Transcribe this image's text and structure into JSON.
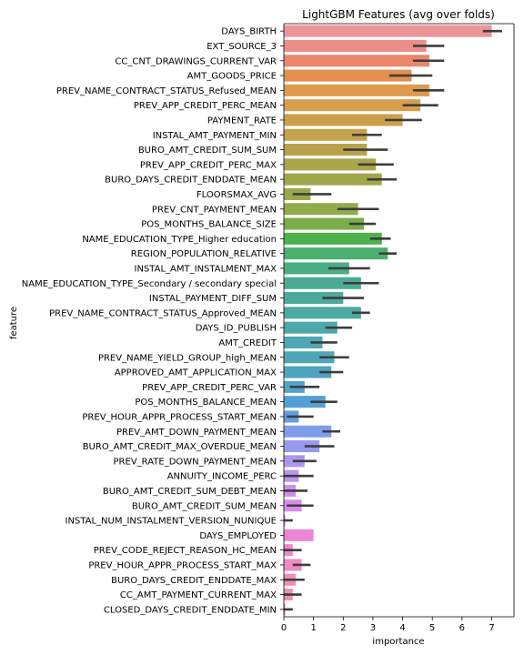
{
  "chart_data": {
    "type": "bar",
    "orientation": "horizontal",
    "title": "LightGBM Features (avg over folds)",
    "xlabel": "importance",
    "ylabel": "feature",
    "xlim": [
      0,
      7.75
    ],
    "xticks": [
      0,
      1,
      2,
      3,
      4,
      5,
      6,
      7
    ],
    "grid": false,
    "legend": "none",
    "bars": [
      {
        "feature": "DAYS_BIRTH",
        "value": 7.0,
        "err_low": 6.7,
        "err_high": 7.35,
        "color": "#ec9599"
      },
      {
        "feature": "EXT_SOURCE_3",
        "value": 4.8,
        "err_low": 4.35,
        "err_high": 5.4,
        "color": "#eb8e8a"
      },
      {
        "feature": "CC_CNT_DRAWINGS_CURRENT_VAR",
        "value": 4.9,
        "err_low": 4.35,
        "err_high": 5.4,
        "color": "#ea866c"
      },
      {
        "feature": "AMT_GOODS_PRICE",
        "value": 4.3,
        "err_low": 3.55,
        "err_high": 5.0,
        "color": "#e48e4f"
      },
      {
        "feature": "PREV_NAME_CONTRACT_STATUS_Refused_MEAN",
        "value": 4.9,
        "err_low": 4.35,
        "err_high": 5.4,
        "color": "#df9a4e"
      },
      {
        "feature": "PREV_APP_CREDIT_PERC_MEAN",
        "value": 4.6,
        "err_low": 4.0,
        "err_high": 5.2,
        "color": "#d79f4c"
      },
      {
        "feature": "PAYMENT_RATE",
        "value": 4.0,
        "err_low": 3.4,
        "err_high": 4.65,
        "color": "#ce9f4b"
      },
      {
        "feature": "INSTAL_AMT_PAYMENT_MIN",
        "value": 2.8,
        "err_low": 2.3,
        "err_high": 3.3,
        "color": "#c4a14b"
      },
      {
        "feature": "BURO_AMT_CREDIT_SUM_SUM",
        "value": 2.8,
        "err_low": 2.0,
        "err_high": 3.5,
        "color": "#b8a24a"
      },
      {
        "feature": "PREV_APP_CREDIT_PERC_MAX",
        "value": 3.1,
        "err_low": 2.5,
        "err_high": 3.7,
        "color": "#aca54a"
      },
      {
        "feature": "BURO_DAYS_CREDIT_ENDDATE_MEAN",
        "value": 3.3,
        "err_low": 2.8,
        "err_high": 3.8,
        "color": "#a2a64a"
      },
      {
        "feature": "FLOORSMAX_AVG",
        "value": 0.9,
        "err_low": 0.3,
        "err_high": 1.6,
        "color": "#99a84a"
      },
      {
        "feature": "PREV_CNT_PAYMENT_MEAN",
        "value": 2.5,
        "err_low": 1.8,
        "err_high": 3.2,
        "color": "#8fab4a"
      },
      {
        "feature": "POS_MONTHS_BALANCE_SIZE",
        "value": 2.7,
        "err_low": 2.2,
        "err_high": 3.1,
        "color": "#7aae4a"
      },
      {
        "feature": "NAME_EDUCATION_TYPE_Higher education",
        "value": 3.3,
        "err_low": 2.9,
        "err_high": 3.6,
        "color": "#4eb14c"
      },
      {
        "feature": "REGION_POPULATION_RELATIVE",
        "value": 3.5,
        "err_low": 3.2,
        "err_high": 3.8,
        "color": "#4aaf6f"
      },
      {
        "feature": "INSTAL_AMT_INSTALMENT_MAX",
        "value": 2.2,
        "err_low": 1.5,
        "err_high": 2.9,
        "color": "#4bad84"
      },
      {
        "feature": "NAME_EDUCATION_TYPE_Secondary / secondary special",
        "value": 2.6,
        "err_low": 2.0,
        "err_high": 3.2,
        "color": "#4bab91"
      },
      {
        "feature": "INSTAL_PAYMENT_DIFF_SUM",
        "value": 2.0,
        "err_low": 1.3,
        "err_high": 2.7,
        "color": "#4caa9b"
      },
      {
        "feature": "PREV_NAME_CONTRACT_STATUS_Approved_MEAN",
        "value": 2.6,
        "err_low": 2.3,
        "err_high": 2.9,
        "color": "#4da9a3"
      },
      {
        "feature": "DAYS_ID_PUBLISH",
        "value": 1.8,
        "err_low": 1.4,
        "err_high": 2.3,
        "color": "#4ea8aa"
      },
      {
        "feature": "AMT_CREDIT",
        "value": 1.3,
        "err_low": 0.9,
        "err_high": 1.8,
        "color": "#4ea7b1"
      },
      {
        "feature": "PREV_NAME_YIELD_GROUP_high_MEAN",
        "value": 1.7,
        "err_low": 1.2,
        "err_high": 2.2,
        "color": "#4fa6b8"
      },
      {
        "feature": "APPROVED_AMT_APPLICATION_MAX",
        "value": 1.6,
        "err_low": 1.2,
        "err_high": 2.0,
        "color": "#51a4c0"
      },
      {
        "feature": "PREV_APP_CREDIT_PERC_VAR",
        "value": 0.7,
        "err_low": 0.2,
        "err_high": 1.2,
        "color": "#53a2c9"
      },
      {
        "feature": "POS_MONTHS_BALANCE_MEAN",
        "value": 1.4,
        "err_low": 0.9,
        "err_high": 1.8,
        "color": "#569fd4"
      },
      {
        "feature": "PREV_HOUR_APPR_PROCESS_START_MEAN",
        "value": 0.5,
        "err_low": 0.1,
        "err_high": 1.0,
        "color": "#629de2"
      },
      {
        "feature": "PREV_AMT_DOWN_PAYMENT_MEAN",
        "value": 1.6,
        "err_low": 1.3,
        "err_high": 1.9,
        "color": "#7f9dea"
      },
      {
        "feature": "BURO_AMT_CREDIT_MAX_OVERDUE_MEAN",
        "value": 1.2,
        "err_low": 0.7,
        "err_high": 1.7,
        "color": "#979aec"
      },
      {
        "feature": "PREV_RATE_DOWN_PAYMENT_MEAN",
        "value": 0.7,
        "err_low": 0.3,
        "err_high": 1.1,
        "color": "#aa97ed"
      },
      {
        "feature": "ANNUITY_INCOME_PERC",
        "value": 0.5,
        "err_low": 0.0,
        "err_high": 1.0,
        "color": "#bb94ed"
      },
      {
        "feature": "BURO_AMT_CREDIT_SUM_DEBT_MEAN",
        "value": 0.4,
        "err_low": 0.0,
        "err_high": 0.8,
        "color": "#cb90ec"
      },
      {
        "feature": "BURO_AMT_CREDIT_SUM_MEAN",
        "value": 0.6,
        "err_low": 0.1,
        "err_high": 1.0,
        "color": "#d98bea"
      },
      {
        "feature": "INSTAL_NUM_INSTALMENT_VERSION_NUNIQUE",
        "value": 0.05,
        "err_low": 0.0,
        "err_high": 0.3,
        "color": "#e586e4"
      },
      {
        "feature": "DAYS_EMPLOYED",
        "value": 1.0,
        "err_low": 1.0,
        "err_high": 1.0,
        "color": "#ec84d8"
      },
      {
        "feature": "PREV_CODE_REJECT_REASON_HC_MEAN",
        "value": 0.3,
        "err_low": 0.0,
        "err_high": 0.6,
        "color": "#ee87cd"
      },
      {
        "feature": "PREV_HOUR_APPR_PROCESS_START_MAX",
        "value": 0.6,
        "err_low": 0.3,
        "err_high": 0.9,
        "color": "#ef8ac2"
      },
      {
        "feature": "BURO_DAYS_CREDIT_ENDDATE_MAX",
        "value": 0.4,
        "err_low": 0.0,
        "err_high": 0.7,
        "color": "#ef8db7"
      },
      {
        "feature": "CC_AMT_PAYMENT_CURRENT_MAX",
        "value": 0.3,
        "err_low": 0.0,
        "err_high": 0.6,
        "color": "#ef90ac"
      },
      {
        "feature": "CLOSED_DAYS_CREDIT_ENDDATE_MIN",
        "value": 0.05,
        "err_low": 0.0,
        "err_high": 0.3,
        "color": "#ee93a2"
      }
    ]
  }
}
